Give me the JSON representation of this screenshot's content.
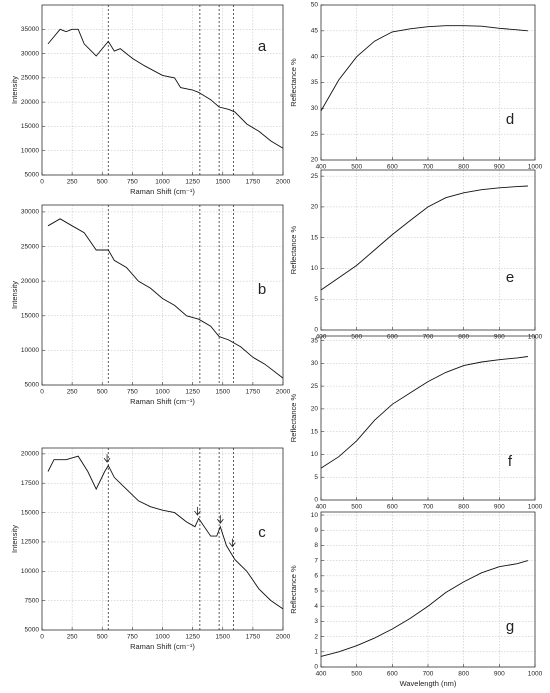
{
  "chart_data": [
    {
      "type": "line",
      "label": "a",
      "xlabel": "Raman Shift (cm⁻¹)",
      "ylabel": "Intensity",
      "x": [
        50,
        100,
        150,
        200,
        250,
        300,
        350,
        450,
        550,
        600,
        650,
        750,
        850,
        1000,
        1100,
        1150,
        1250,
        1300,
        1400,
        1470,
        1550,
        1600,
        1700,
        1800,
        1900,
        2000
      ],
      "values": [
        32000,
        33500,
        35000,
        34500,
        35000,
        35000,
        32000,
        29500,
        32500,
        30500,
        31000,
        29000,
        27500,
        25500,
        25000,
        23000,
        22500,
        22000,
        20500,
        19000,
        18500,
        18000,
        15500,
        14000,
        12000,
        10500
      ],
      "xlim": [
        0,
        2000
      ],
      "xticks": [
        0,
        250,
        500,
        750,
        1000,
        1250,
        1500,
        1750,
        2000
      ],
      "ylim": [
        5000,
        40000
      ],
      "yticks": [
        5000,
        10000,
        15000,
        20000,
        25000,
        30000,
        35000
      ],
      "vlines": [
        550,
        1310,
        1470,
        1590
      ],
      "grid": true,
      "color": "#111111"
    },
    {
      "type": "line",
      "label": "b",
      "xlabel": "Raman Shift (cm⁻¹)",
      "ylabel": "Intensity",
      "x": [
        50,
        150,
        250,
        350,
        450,
        550,
        600,
        700,
        800,
        900,
        1000,
        1100,
        1200,
        1300,
        1400,
        1470,
        1550,
        1650,
        1750,
        1850,
        2000
      ],
      "values": [
        28000,
        29000,
        28000,
        27000,
        24500,
        24500,
        23000,
        22000,
        20000,
        19000,
        17500,
        16500,
        15000,
        14500,
        13500,
        12000,
        11500,
        10500,
        9000,
        8000,
        6000
      ],
      "xlim": [
        0,
        2000
      ],
      "xticks": [
        0,
        250,
        500,
        750,
        1000,
        1250,
        1500,
        1750,
        2000
      ],
      "ylim": [
        5000,
        31000
      ],
      "yticks": [
        5000,
        10000,
        15000,
        20000,
        25000,
        30000
      ],
      "vlines": [
        550,
        1310,
        1470,
        1590
      ],
      "grid": true,
      "color": "#111111"
    },
    {
      "type": "line",
      "label": "c",
      "xlabel": "Raman Shift (cm⁻¹)",
      "ylabel": "Intensity",
      "x": [
        50,
        100,
        200,
        300,
        380,
        450,
        520,
        550,
        600,
        700,
        800,
        900,
        1000,
        1100,
        1200,
        1270,
        1300,
        1400,
        1450,
        1480,
        1530,
        1600,
        1700,
        1800,
        1900,
        2000
      ],
      "values": [
        18500,
        19500,
        19500,
        19800,
        18500,
        17000,
        18500,
        19000,
        18000,
        17000,
        16000,
        15500,
        15200,
        15000,
        14200,
        13800,
        14500,
        13000,
        13000,
        13800,
        12200,
        11000,
        10000,
        8500,
        7500,
        6800
      ],
      "xlim": [
        0,
        2000
      ],
      "xticks": [
        0,
        250,
        500,
        750,
        1000,
        1250,
        1500,
        1750,
        2000
      ],
      "ylim": [
        5000,
        20500
      ],
      "yticks": [
        5000,
        7500,
        10000,
        12500,
        15000,
        17500,
        20000
      ],
      "vlines": [
        550,
        1310,
        1470,
        1590
      ],
      "arrows": {
        "x": [
          540,
          1290,
          1480,
          1580
        ],
        "y": [
          19300,
          14800,
          14100,
          12100
        ]
      },
      "grid": true,
      "color": "#111111"
    },
    {
      "type": "line",
      "label": "d",
      "ylabel": "Reflectance %",
      "x": [
        400,
        450,
        500,
        550,
        600,
        650,
        700,
        750,
        800,
        850,
        900,
        950,
        980
      ],
      "values": [
        29.5,
        35.5,
        40,
        43,
        44.8,
        45.4,
        45.8,
        46,
        46,
        45.9,
        45.5,
        45.2,
        45
      ],
      "xlim": [
        400,
        1000
      ],
      "xticks": [
        400,
        500,
        600,
        700,
        800,
        900,
        1000
      ],
      "ylim": [
        20,
        50
      ],
      "yticks": [
        20,
        25,
        30,
        35,
        40,
        45,
        50
      ],
      "grid": true,
      "color": "#111111"
    },
    {
      "type": "line",
      "label": "e",
      "ylabel": "Reflectance %",
      "x": [
        400,
        450,
        500,
        550,
        600,
        650,
        700,
        750,
        800,
        850,
        900,
        950,
        980
      ],
      "values": [
        6.5,
        8.5,
        10.5,
        13,
        15.5,
        17.8,
        20,
        21.5,
        22.3,
        22.8,
        23.1,
        23.3,
        23.4
      ],
      "xlim": [
        400,
        1000
      ],
      "xticks": [
        400,
        500,
        600,
        700,
        800,
        900,
        1000
      ],
      "ylim": [
        0,
        26
      ],
      "yticks": [
        0,
        5,
        10,
        15,
        20,
        25
      ],
      "grid": true,
      "color": "#111111"
    },
    {
      "type": "line",
      "label": "f",
      "ylabel": "Reflectance %",
      "x": [
        400,
        450,
        500,
        550,
        600,
        650,
        700,
        750,
        800,
        850,
        900,
        950,
        980
      ],
      "values": [
        7,
        9.5,
        13,
        17.5,
        21,
        23.5,
        26,
        28,
        29.5,
        30.3,
        30.8,
        31.2,
        31.5
      ],
      "xlim": [
        400,
        1000
      ],
      "xticks": [
        400,
        500,
        600,
        700,
        800,
        900,
        1000
      ],
      "ylim": [
        0,
        36
      ],
      "yticks": [
        0,
        5,
        10,
        15,
        20,
        25,
        30,
        35
      ],
      "grid": true,
      "color": "#111111"
    },
    {
      "type": "line",
      "label": "g",
      "xlabel": "Wavelength (nm)",
      "ylabel": "Reflectance %",
      "x": [
        400,
        450,
        500,
        550,
        600,
        650,
        700,
        750,
        800,
        850,
        900,
        950,
        980
      ],
      "values": [
        0.7,
        1.0,
        1.4,
        1.9,
        2.5,
        3.2,
        4.0,
        4.9,
        5.6,
        6.2,
        6.6,
        6.8,
        7.0
      ],
      "xlim": [
        400,
        1000
      ],
      "xticks": [
        400,
        500,
        600,
        700,
        800,
        900,
        1000
      ],
      "ylim": [
        0,
        10.2
      ],
      "yticks": [
        0,
        1,
        2,
        3,
        4,
        5,
        6,
        7,
        8,
        9,
        10
      ],
      "grid": true,
      "color": "#111111"
    }
  ]
}
